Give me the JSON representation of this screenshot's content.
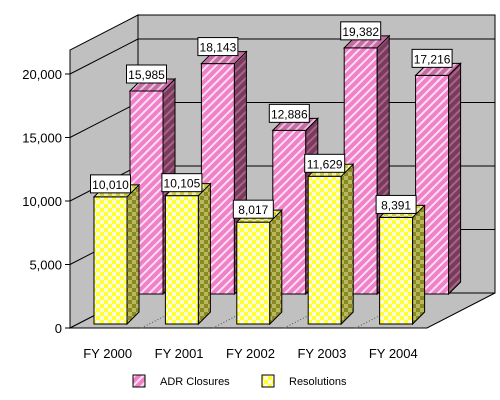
{
  "chart_data": {
    "type": "bar",
    "style": "3d-clustered-column",
    "categories": [
      "FY 2000",
      "FY 2001",
      "FY 2002",
      "FY 2003",
      "FY 2004"
    ],
    "series": [
      {
        "name": "ADR Closures",
        "values": [
          15985,
          18143,
          12886,
          19382,
          17216
        ],
        "value_labels": [
          "15,985",
          "18,143",
          "12,886",
          "19,382",
          "17,216"
        ],
        "color": "#f080c8",
        "pattern": "diagonal-hatch"
      },
      {
        "name": "Resolutions",
        "values": [
          10010,
          10105,
          8017,
          11629,
          8391
        ],
        "value_labels": [
          "10,010",
          "10,105",
          "8,017",
          "11,629",
          "8,391"
        ],
        "color": "#ffff33",
        "pattern": "checkerboard"
      }
    ],
    "ylim": [
      0,
      20000
    ],
    "y_ticks": [
      "0",
      "5,000",
      "10,000",
      "15,000",
      "20,000"
    ],
    "y_tick_values": [
      0,
      5000,
      10000,
      15000,
      20000
    ],
    "grid": true,
    "legend_position": "bottom"
  }
}
